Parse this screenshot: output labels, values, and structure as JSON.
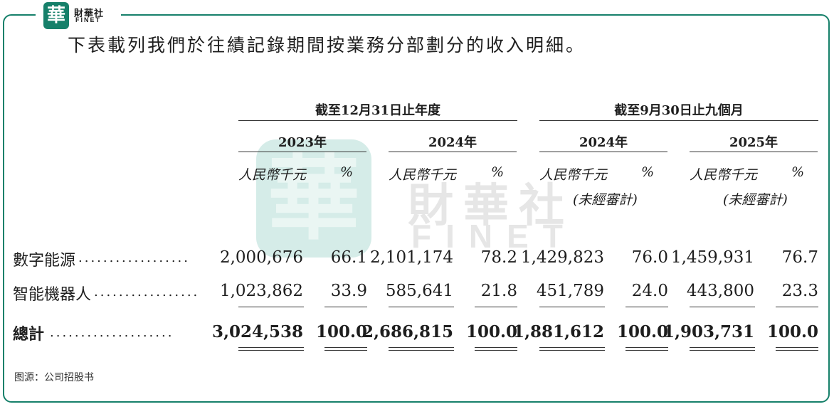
{
  "brand": {
    "seal_char": "華",
    "name": "財華社",
    "sub": "FINET"
  },
  "intro": "下表載列我們於往績記錄期間按業務分部劃分的收入明細。",
  "periods": [
    "截至12月31日止年度",
    "截至9月30日止九個月"
  ],
  "years": [
    "2023年",
    "2024年",
    "2024年",
    "2025年"
  ],
  "unit_label": "人民幣千元",
  "pct_label": "%",
  "unaudited_note": "(未經審計)",
  "rows": [
    {
      "label": "數字能源",
      "leader": "..................",
      "cells": [
        "2,000,676",
        "66.1",
        "2,101,174",
        "78.2",
        "1,429,823",
        "76.0",
        "1,459,931",
        "76.7"
      ]
    },
    {
      "label": "智能機器人",
      "leader": ".................",
      "cells": [
        "1,023,862",
        "33.9",
        "585,641",
        "21.8",
        "451,789",
        "24.0",
        "443,800",
        "23.3"
      ]
    }
  ],
  "total": {
    "label": "總計",
    "leader": "....................",
    "cells": [
      "3,024,538",
      "100.0",
      "2,686,815",
      "100.0",
      "1,881,612",
      "100.0",
      "1,903,731",
      "100.0"
    ]
  },
  "source": "图源：公司招股书",
  "colors": {
    "frame": "#16806a",
    "watermark": "#d5ece8"
  }
}
